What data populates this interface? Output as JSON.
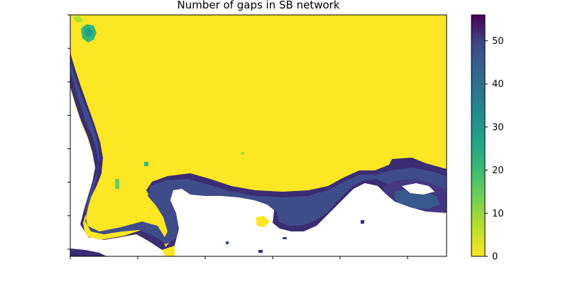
{
  "chart_data": {
    "type": "heatmap",
    "title": "Number of gaps in SB network",
    "xlabel": "",
    "ylabel": "",
    "colormap": "viridis_r",
    "colorbar": {
      "vmin": 0,
      "vmax": 56,
      "ticks": [
        0,
        10,
        20,
        30,
        40,
        50
      ],
      "tick_labels": [
        "0",
        "10",
        "20",
        "30",
        "40",
        "50"
      ]
    },
    "no_data_color": "#ffffff",
    "x_tick_count": 6,
    "y_tick_count": 8,
    "x_tick_labels": [],
    "y_tick_labels": [],
    "regions": [
      {
        "name": "low-gap interior",
        "value": 0
      },
      {
        "name": "coastal belt",
        "value": 44
      },
      {
        "name": "outer coastal edge",
        "value": 50
      },
      {
        "name": "green patch northwest",
        "value": 30
      },
      {
        "name": "small green patches",
        "value": 20
      }
    ]
  }
}
